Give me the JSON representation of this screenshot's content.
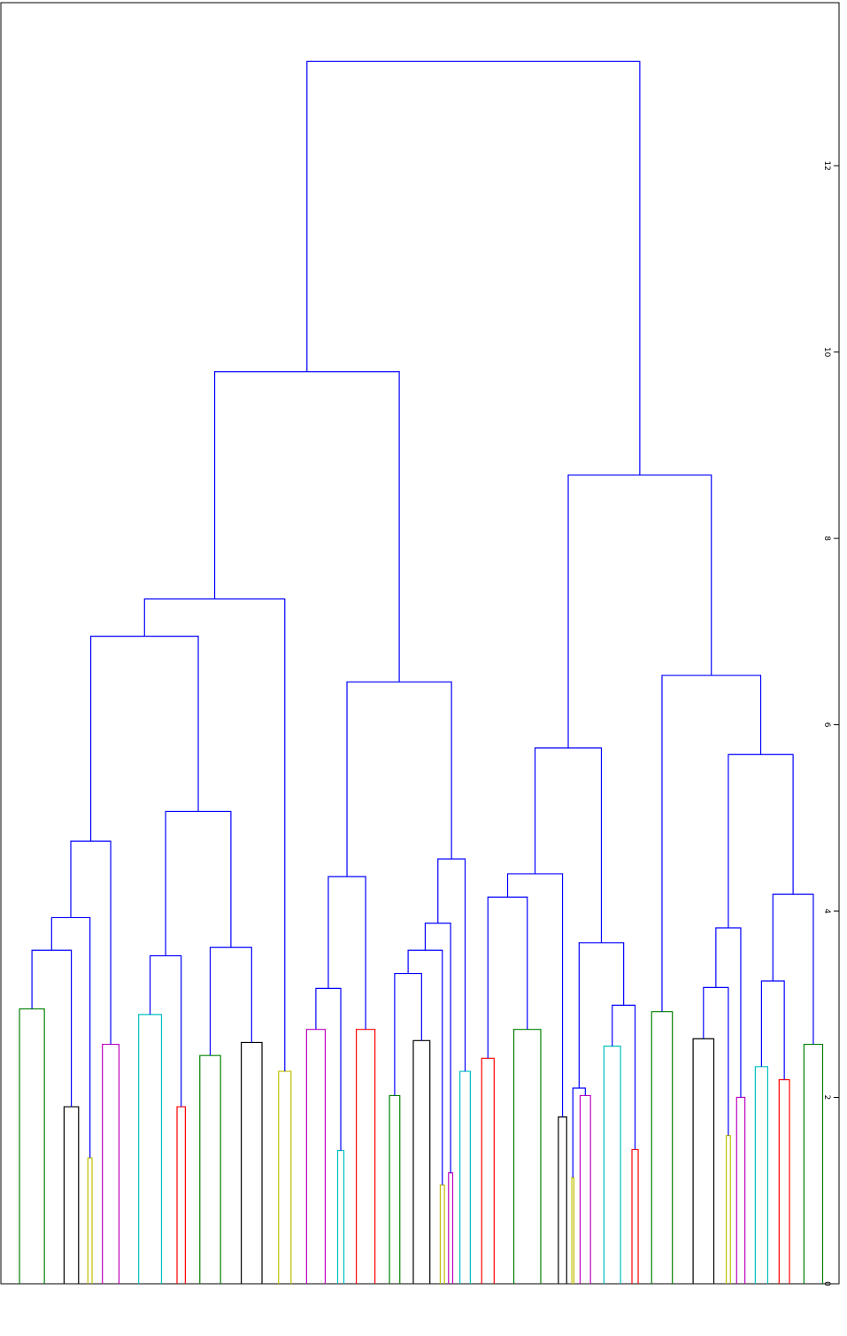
{
  "chart_data": {
    "type": "dendrogram",
    "orientation": "vertical",
    "ylim": [
      0,
      13.75
    ],
    "yticks": [
      0,
      2,
      4,
      6,
      8,
      10,
      12
    ],
    "link_color": "#0000ff",
    "clusters": [
      {
        "color": "#008000",
        "height": 2.95,
        "size": 12
      },
      {
        "color": "#000000",
        "height": 1.9,
        "size": 7
      },
      {
        "color": "#bfbf00",
        "height": 1.35,
        "size": 2
      },
      {
        "color": "#bf00bf",
        "height": 2.57,
        "size": 8
      },
      {
        "color": "#00bfbf",
        "height": 2.89,
        "size": 11
      },
      {
        "color": "#ff0000",
        "height": 1.9,
        "size": 4
      },
      {
        "color": "#008000",
        "height": 2.45,
        "size": 10
      },
      {
        "color": "#000000",
        "height": 2.59,
        "size": 10
      },
      {
        "color": "#bfbf00",
        "height": 2.28,
        "size": 6
      },
      {
        "color": "#bf00bf",
        "height": 2.73,
        "size": 9
      },
      {
        "color": "#00bfbf",
        "height": 1.43,
        "size": 3
      },
      {
        "color": "#ff0000",
        "height": 2.73,
        "size": 9
      },
      {
        "color": "#008000",
        "height": 2.02,
        "size": 5
      },
      {
        "color": "#000000",
        "height": 2.61,
        "size": 8
      },
      {
        "color": "#bfbf00",
        "height": 1.06,
        "size": 2
      },
      {
        "color": "#bf00bf",
        "height": 1.19,
        "size": 2
      },
      {
        "color": "#00bfbf",
        "height": 2.28,
        "size": 5
      },
      {
        "color": "#ff0000",
        "height": 2.42,
        "size": 6
      },
      {
        "color": "#008000",
        "height": 2.73,
        "size": 13
      },
      {
        "color": "#000000",
        "height": 1.79,
        "size": 4
      },
      {
        "color": "#bfbf00",
        "height": 1.14,
        "size": 1
      },
      {
        "color": "#bf00bf",
        "height": 2.02,
        "size": 5
      },
      {
        "color": "#00bfbf",
        "height": 2.55,
        "size": 8
      },
      {
        "color": "#ff0000",
        "height": 1.44,
        "size": 3
      },
      {
        "color": "#008000",
        "height": 2.92,
        "size": 10
      },
      {
        "color": "#000000",
        "height": 2.63,
        "size": 10
      },
      {
        "color": "#bfbf00",
        "height": 1.59,
        "size": 2
      },
      {
        "color": "#bf00bf",
        "height": 2.0,
        "size": 4
      },
      {
        "color": "#00bfbf",
        "height": 2.33,
        "size": 6
      },
      {
        "color": "#ff0000",
        "height": 2.19,
        "size": 5
      },
      {
        "color": "#008000",
        "height": 2.57,
        "size": 9
      }
    ],
    "merges": [
      {
        "children": [
          0,
          1
        ],
        "height": 3.58
      },
      {
        "children": [
          31,
          2
        ],
        "height": 3.93
      },
      {
        "children": [
          32,
          3
        ],
        "height": 4.75
      },
      {
        "children": [
          4,
          5
        ],
        "height": 3.52
      },
      {
        "children": [
          6,
          7
        ],
        "height": 3.61
      },
      {
        "children": [
          34,
          35
        ],
        "height": 5.07
      },
      {
        "children": [
          33,
          36
        ],
        "height": 6.95
      },
      {
        "children": [
          37,
          8
        ],
        "height": 7.35
      },
      {
        "children": [
          9,
          10
        ],
        "height": 3.17
      },
      {
        "children": [
          39,
          11
        ],
        "height": 4.37
      },
      {
        "children": [
          12,
          13
        ],
        "height": 3.33
      },
      {
        "children": [
          41,
          14
        ],
        "height": 3.58
      },
      {
        "children": [
          42,
          15
        ],
        "height": 3.87
      },
      {
        "children": [
          43,
          16
        ],
        "height": 4.56
      },
      {
        "children": [
          40,
          44
        ],
        "height": 6.46
      },
      {
        "children": [
          38,
          45
        ],
        "height": 9.79
      },
      {
        "children": [
          17,
          18
        ],
        "height": 4.15
      },
      {
        "children": [
          47,
          19
        ],
        "height": 4.4
      },
      {
        "children": [
          20,
          21
        ],
        "height": 2.1
      },
      {
        "children": [
          22,
          23
        ],
        "height": 2.99
      },
      {
        "children": [
          49,
          50
        ],
        "height": 3.66
      },
      {
        "children": [
          48,
          51
        ],
        "height": 5.75
      },
      {
        "children": [
          25,
          26
        ],
        "height": 3.18
      },
      {
        "children": [
          53,
          27
        ],
        "height": 3.82
      },
      {
        "children": [
          28,
          29
        ],
        "height": 3.25
      },
      {
        "children": [
          55,
          30
        ],
        "height": 4.18
      },
      {
        "children": [
          54,
          56
        ],
        "height": 5.68
      },
      {
        "children": [
          24,
          57
        ],
        "height": 6.53
      },
      {
        "children": [
          52,
          58
        ],
        "height": 8.68
      },
      {
        "children": [
          46,
          59
        ],
        "height": 13.12
      }
    ]
  }
}
